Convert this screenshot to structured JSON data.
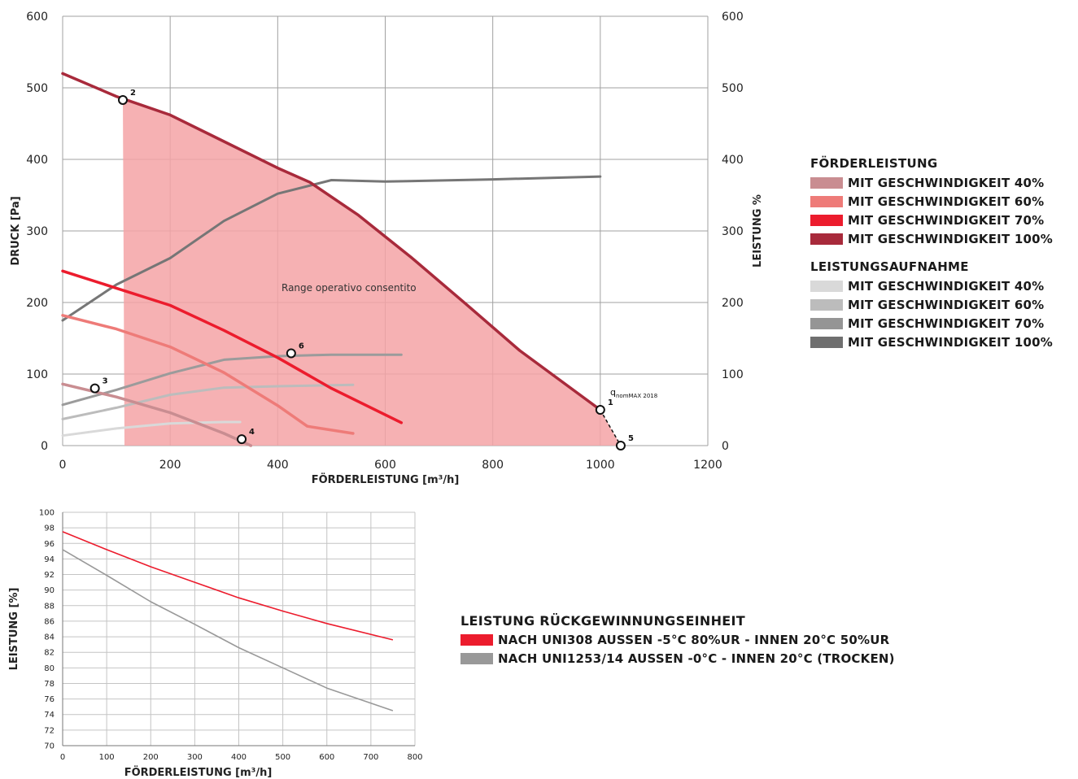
{
  "chart_data": [
    {
      "type": "line",
      "xlabel": "FÖRDERLEISTUNG [m³/h]",
      "ylabel": "DRUCK [Pa]",
      "y2label": "LEISTUNG %",
      "xlim": [
        0,
        1200
      ],
      "ylim": [
        0,
        600
      ],
      "y2lim": [
        0,
        600
      ],
      "xticks": [
        "0",
        "200",
        "400",
        "600",
        "800",
        "1000",
        "1200"
      ],
      "yticks": [
        "0",
        "100",
        "200",
        "300",
        "400",
        "500",
        "600"
      ],
      "y2ticks": [
        "0",
        "100",
        "200",
        "300",
        "400",
        "500",
        "600"
      ],
      "grid": true,
      "annotation": "Range operativo consentito",
      "qnom_label": {
        "main": "q",
        "sub": "nomMAX 2018"
      },
      "operating_area": [
        [
          115,
          0
        ],
        [
          112,
          483
        ],
        [
          200,
          462
        ],
        [
          300,
          425
        ],
        [
          400,
          388
        ],
        [
          460,
          368
        ],
        [
          550,
          322
        ],
        [
          650,
          262
        ],
        [
          750,
          198
        ],
        [
          850,
          133
        ],
        [
          1000,
          50
        ],
        [
          1038,
          0
        ]
      ],
      "points": [
        {
          "label": "1",
          "x": 1000,
          "y": 50
        },
        {
          "label": "2",
          "x": 112,
          "y": 483
        },
        {
          "label": "3",
          "x": 60,
          "y": 80
        },
        {
          "label": "4",
          "x": 333,
          "y": 9
        },
        {
          "label": "5",
          "x": 1038,
          "y": 0
        },
        {
          "label": "6",
          "x": 425,
          "y": 129
        }
      ],
      "dashed_segment": [
        [
          1000,
          50
        ],
        [
          1038,
          0
        ]
      ],
      "pressure_series": [
        {
          "name": "MIT GESCHWINDIGKEIT 40%",
          "color": "#c98d91",
          "points": [
            [
              0,
              86
            ],
            [
              100,
              68
            ],
            [
              200,
              46
            ],
            [
              300,
              17
            ],
            [
              350,
              0
            ]
          ]
        },
        {
          "name": "MIT GESCHWINDIGKEIT 60%",
          "color": "#ee7b78",
          "points": [
            [
              0,
              182
            ],
            [
              100,
              163
            ],
            [
              200,
              138
            ],
            [
              300,
              102
            ],
            [
              400,
              56
            ],
            [
              455,
              27
            ],
            [
              540,
              17
            ]
          ]
        },
        {
          "name": "MIT GESCHWINDIGKEIT 70%",
          "color": "#ec1c2d",
          "points": [
            [
              0,
              244
            ],
            [
              100,
              220
            ],
            [
              200,
              196
            ],
            [
              300,
              161
            ],
            [
              400,
              123
            ],
            [
              500,
              80
            ],
            [
              630,
              32
            ]
          ]
        },
        {
          "name": "MIT GESCHWINDIGKEIT 100%",
          "color": "#a82a3b",
          "points": [
            [
              0,
              520
            ],
            [
              100,
              488
            ],
            [
              200,
              462
            ],
            [
              300,
              425
            ],
            [
              400,
              388
            ],
            [
              460,
              368
            ],
            [
              550,
              322
            ],
            [
              650,
              262
            ],
            [
              750,
              198
            ],
            [
              850,
              133
            ],
            [
              1000,
              50
            ]
          ]
        }
      ],
      "power_series": [
        {
          "name": "MIT GESCHWINDIGKEIT 40%",
          "color": "#d9d9d9",
          "points": [
            [
              0,
              14
            ],
            [
              100,
              24
            ],
            [
              200,
              31
            ],
            [
              300,
              33
            ],
            [
              330,
              33
            ]
          ]
        },
        {
          "name": "MIT GESCHWINDIGKEIT 60%",
          "color": "#bcbcbc",
          "points": [
            [
              0,
              37
            ],
            [
              100,
              53
            ],
            [
              200,
              71
            ],
            [
              300,
              81
            ],
            [
              400,
              83
            ],
            [
              540,
              85
            ]
          ]
        },
        {
          "name": "MIT GESCHWINDIGKEIT 70%",
          "color": "#9b9b9b",
          "points": [
            [
              0,
              57
            ],
            [
              100,
              78
            ],
            [
              200,
              101
            ],
            [
              300,
              120
            ],
            [
              400,
              125
            ],
            [
              500,
              127
            ],
            [
              630,
              127
            ]
          ]
        },
        {
          "name": "MIT GESCHWINDIGKEIT 100%",
          "color": "#767676",
          "points": [
            [
              0,
              175
            ],
            [
              100,
              225
            ],
            [
              200,
              262
            ],
            [
              300,
              314
            ],
            [
              400,
              352
            ],
            [
              500,
              371
            ],
            [
              600,
              369
            ],
            [
              800,
              372
            ],
            [
              1000,
              376
            ]
          ]
        }
      ]
    },
    {
      "type": "line",
      "xlabel": "FÖRDERLEISTUNG [m³/h]",
      "ylabel": "LEISTUNG [%]",
      "xlim": [
        0,
        800
      ],
      "ylim": [
        70,
        100
      ],
      "xticks": [
        "0",
        "100",
        "200",
        "300",
        "400",
        "500",
        "600",
        "700",
        "800"
      ],
      "yticks": [
        "70",
        "72",
        "74",
        "76",
        "78",
        "80",
        "82",
        "84",
        "86",
        "88",
        "90",
        "92",
        "94",
        "96",
        "98",
        "100"
      ],
      "grid": true,
      "series": [
        {
          "name": "NACH UNI308 AUSSEN -5°C 80%UR - INNEN 20°C 50%UR",
          "color": "#ec1c2d",
          "points": [
            [
              0,
              97.5
            ],
            [
              100,
              95.2
            ],
            [
              200,
              93.0
            ],
            [
              300,
              91.0
            ],
            [
              400,
              89.0
            ],
            [
              500,
              87.3
            ],
            [
              600,
              85.7
            ],
            [
              750,
              83.6
            ]
          ]
        },
        {
          "name": "NACH UNI1253/14 AUSSEN -0°C - INNEN 20°C (TROCKEN)",
          "color": "#999999",
          "points": [
            [
              0,
              95.2
            ],
            [
              100,
              91.9
            ],
            [
              200,
              88.5
            ],
            [
              300,
              85.6
            ],
            [
              400,
              82.6
            ],
            [
              500,
              80.0
            ],
            [
              600,
              77.4
            ],
            [
              750,
              74.5
            ]
          ]
        }
      ]
    }
  ],
  "legend_top": {
    "title1": "FÖRDERLEISTUNG",
    "items1": [
      {
        "label": "MIT GESCHWINDIGKEIT 40%",
        "color": "#c98d91"
      },
      {
        "label": "MIT GESCHWINDIGKEIT 60%",
        "color": "#ee7b78"
      },
      {
        "label": "MIT GESCHWINDIGKEIT 70%",
        "color": "#ec1c2d"
      },
      {
        "label": "MIT GESCHWINDIGKEIT 100%",
        "color": "#a82a3b"
      }
    ],
    "title2": "LEISTUNGSAUFNAHME",
    "items2": [
      {
        "label": "MIT GESCHWINDIGKEIT 40%",
        "color": "#d9d9d9"
      },
      {
        "label": "MIT GESCHWINDIGKEIT 60%",
        "color": "#bcbcbc"
      },
      {
        "label": "MIT GESCHWINDIGKEIT 70%",
        "color": "#959595"
      },
      {
        "label": "MIT GESCHWINDIGKEIT 100%",
        "color": "#6f6f6f"
      }
    ]
  },
  "legend_bottom": {
    "title": "LEISTUNG RÜCKGEWINNUNGSEINHEIT",
    "items": [
      {
        "label": "NACH UNI308 AUSSEN -5°C 80%UR - INNEN 20°C 50%UR",
        "color": "#ec1c2d"
      },
      {
        "label": "NACH UNI1253/14 AUSSEN -0°C - INNEN 20°C (TROCKEN)",
        "color": "#999999"
      }
    ]
  },
  "colors": {
    "area_fill": "#f4a3a6",
    "grid": "#a0a0a0",
    "axis": "#666666"
  }
}
